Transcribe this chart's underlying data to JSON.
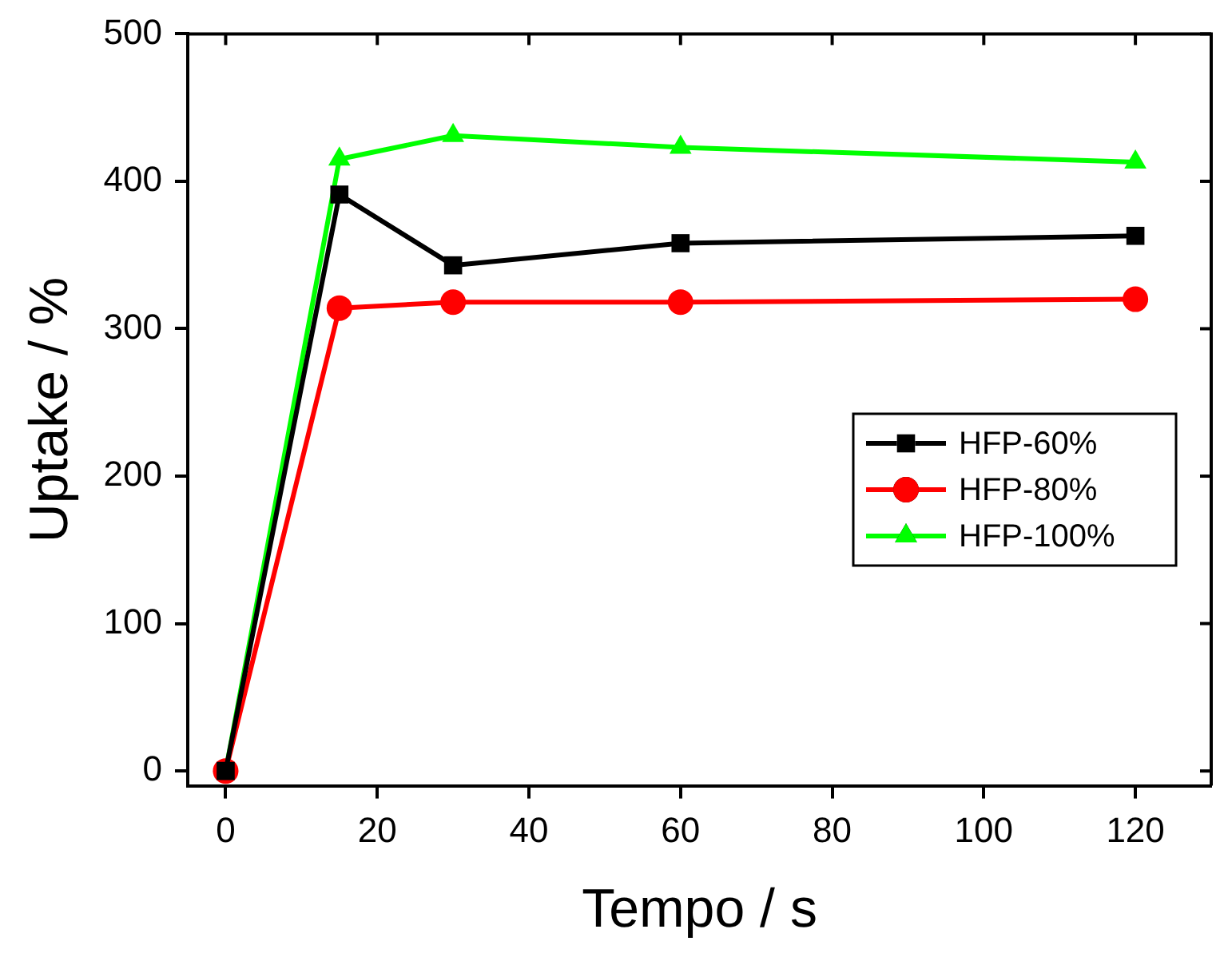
{
  "chart_data": {
    "type": "line",
    "xlabel": "Tempo / s",
    "ylabel": "Uptake / %",
    "x": [
      0,
      15,
      30,
      60,
      120
    ],
    "series": [
      {
        "name": "HFP-60%",
        "color": "#000000",
        "marker": "square",
        "values": [
          0,
          391,
          343,
          358,
          363
        ]
      },
      {
        "name": "HFP-80%",
        "color": "#ff0000",
        "marker": "circle",
        "values": [
          0,
          314,
          318,
          318,
          320
        ]
      },
      {
        "name": "HFP-100%",
        "color": "#00ff00",
        "marker": "triangle",
        "values": [
          0,
          415,
          431,
          423,
          413
        ]
      }
    ],
    "xlim": [
      -5,
      130
    ],
    "xticks": [
      0,
      20,
      40,
      60,
      80,
      100,
      120
    ],
    "ylim": [
      -10,
      500
    ],
    "yticks": [
      0,
      100,
      200,
      300,
      400,
      500
    ],
    "grid": false,
    "legend": "right",
    "line_style": "solid"
  }
}
